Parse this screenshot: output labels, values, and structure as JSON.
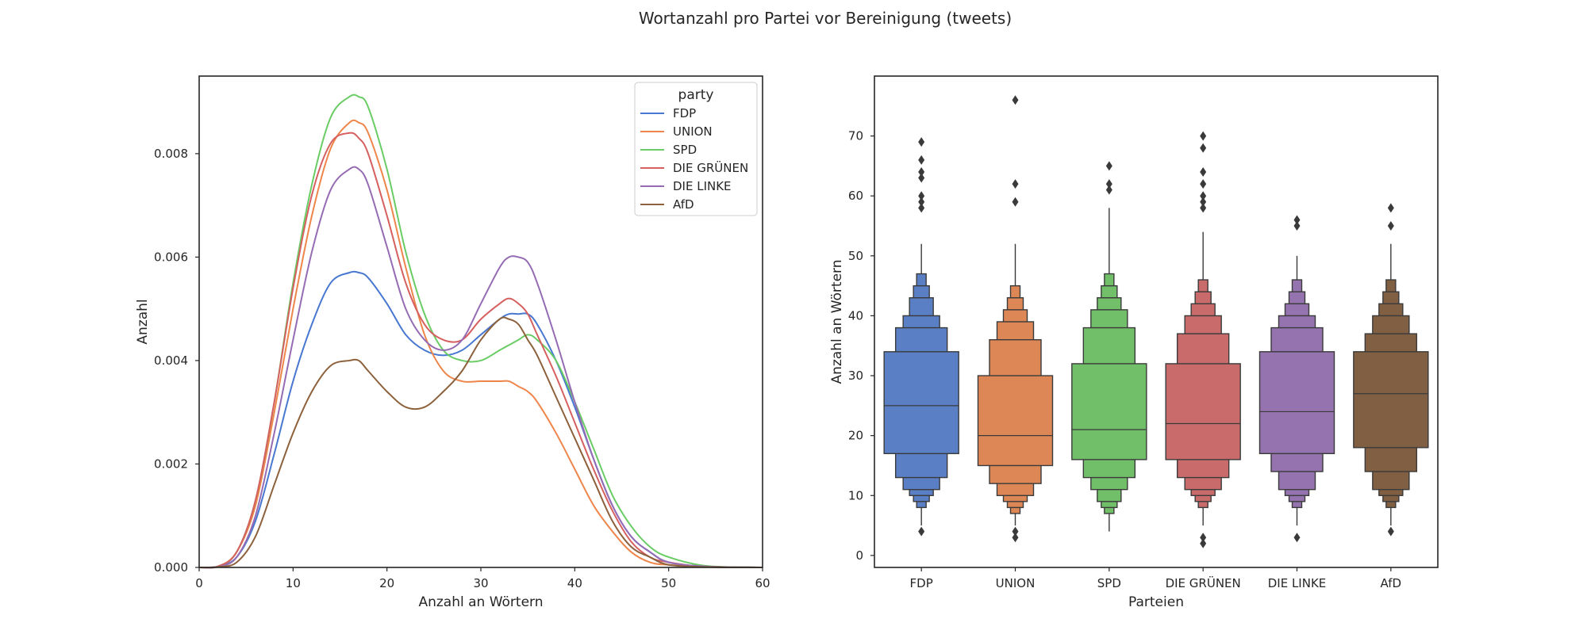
{
  "figure": {
    "suptitle": "Wortanzahl pro Partei vor Bereinigung (tweets)"
  },
  "chart_data": [
    {
      "type": "line",
      "subtype": "kde",
      "xlabel": "Anzahl an Wörtern",
      "ylabel": "Anzahl",
      "xlim": [
        0,
        60
      ],
      "ylim": [
        0,
        0.0095
      ],
      "xticks": [
        "0",
        "10",
        "20",
        "30",
        "40",
        "50",
        "60"
      ],
      "yticks": [
        "0.000",
        "0.002",
        "0.004",
        "0.006",
        "0.008"
      ],
      "grid": false,
      "legend": {
        "title": "party",
        "placement": "top-right",
        "entries": [
          "FDP",
          "UNION",
          "SPD",
          "DIE GRÜNEN",
          "DIE LINKE",
          "AfD"
        ]
      },
      "x": [
        0,
        2,
        4,
        6,
        8,
        10,
        12,
        14,
        16,
        17,
        18,
        20,
        22,
        24,
        26,
        28,
        30,
        32,
        33,
        34,
        35,
        36,
        38,
        40,
        42,
        44,
        46,
        48,
        50,
        54,
        60
      ],
      "series": [
        {
          "name": "FDP",
          "color": "#4878d0",
          "values": [
            0,
            2e-05,
            0.0002,
            0.0009,
            0.0022,
            0.0036,
            0.0047,
            0.0055,
            0.0057,
            0.0057,
            0.0056,
            0.0051,
            0.0045,
            0.0042,
            0.0041,
            0.0042,
            0.0045,
            0.0048,
            0.0049,
            0.0049,
            0.0049,
            0.0047,
            0.004,
            0.0031,
            0.0021,
            0.0012,
            0.0006,
            0.0003,
            0.0001,
            2e-05,
            0
          ]
        },
        {
          "name": "UNION",
          "color": "#ee854a",
          "values": [
            0,
            2e-05,
            0.0003,
            0.0012,
            0.003,
            0.005,
            0.0068,
            0.0081,
            0.0086,
            0.0086,
            0.0084,
            0.0073,
            0.0058,
            0.0045,
            0.0038,
            0.0036,
            0.0036,
            0.0036,
            0.0036,
            0.0035,
            0.0034,
            0.0032,
            0.0026,
            0.0019,
            0.0012,
            0.0007,
            0.0003,
            0.0001,
            5e-05,
            1e-05,
            0
          ]
        },
        {
          "name": "SPD",
          "color": "#6acc64",
          "values": [
            0,
            2e-05,
            0.0003,
            0.0013,
            0.0032,
            0.0055,
            0.0074,
            0.0087,
            0.0091,
            0.0091,
            0.0089,
            0.0077,
            0.0061,
            0.0049,
            0.0042,
            0.004,
            0.004,
            0.0042,
            0.0043,
            0.0044,
            0.0045,
            0.0044,
            0.004,
            0.0032,
            0.0023,
            0.0014,
            0.0008,
            0.0004,
            0.0002,
            3e-05,
            0
          ]
        },
        {
          "name": "DIE GRÜNEN",
          "color": "#d65f5f",
          "values": [
            0,
            2e-05,
            0.0003,
            0.0013,
            0.0032,
            0.0054,
            0.0072,
            0.0082,
            0.0084,
            0.0083,
            0.008,
            0.0068,
            0.0055,
            0.0047,
            0.0044,
            0.0044,
            0.0048,
            0.0051,
            0.0052,
            0.0051,
            0.0049,
            0.0045,
            0.0037,
            0.0028,
            0.0019,
            0.0011,
            0.0005,
            0.0002,
            0.0001,
            1e-05,
            0
          ]
        },
        {
          "name": "DIE LINKE",
          "color": "#956cb4",
          "values": [
            0,
            1e-05,
            0.0002,
            0.001,
            0.0026,
            0.0044,
            0.0061,
            0.0073,
            0.0077,
            0.0077,
            0.0074,
            0.0062,
            0.005,
            0.0044,
            0.0042,
            0.0044,
            0.0051,
            0.0058,
            0.006,
            0.006,
            0.0059,
            0.0055,
            0.0044,
            0.0032,
            0.0021,
            0.0012,
            0.0006,
            0.0003,
            0.0001,
            2e-05,
            0
          ]
        },
        {
          "name": "AfD",
          "color": "#8c613c",
          "values": [
            0,
            1e-05,
            0.0001,
            0.0006,
            0.0016,
            0.0026,
            0.0034,
            0.0039,
            0.004,
            0.004,
            0.0038,
            0.0034,
            0.0031,
            0.0031,
            0.0034,
            0.0038,
            0.0044,
            0.0048,
            0.0048,
            0.0047,
            0.0044,
            0.0041,
            0.0033,
            0.0025,
            0.0017,
            0.0009,
            0.0004,
            0.0002,
            5e-05,
            1e-05,
            0
          ]
        }
      ]
    },
    {
      "type": "boxen",
      "xlabel": "Parteien",
      "ylabel": "Anzahl an Wörtern",
      "ylim": [
        -2,
        80
      ],
      "yticks": [
        "0",
        "10",
        "20",
        "30",
        "40",
        "50",
        "60",
        "70"
      ],
      "grid": false,
      "categories": [
        "FDP",
        "UNION",
        "SPD",
        "DIE GRÜNEN",
        "DIE LINKE",
        "AfD"
      ],
      "series": [
        {
          "name": "FDP",
          "color": "#5a7fc4",
          "median": 25,
          "boxes": [
            [
              17,
              34
            ],
            [
              13,
              38
            ],
            [
              11,
              40
            ],
            [
              10,
              43
            ],
            [
              9,
              45
            ],
            [
              8,
              47
            ]
          ],
          "whisker": [
            5,
            52
          ],
          "outliers": [
            4,
            58,
            59,
            60,
            63,
            64,
            66,
            69
          ]
        },
        {
          "name": "UNION",
          "color": "#dd8757",
          "median": 20,
          "boxes": [
            [
              15,
              30
            ],
            [
              12,
              36
            ],
            [
              10,
              39
            ],
            [
              9,
              41
            ],
            [
              8,
              43
            ],
            [
              7,
              45
            ]
          ],
          "whisker": [
            5,
            52
          ],
          "outliers": [
            3,
            4,
            59,
            62,
            76
          ]
        },
        {
          "name": "SPD",
          "color": "#72bf6a",
          "median": 21,
          "boxes": [
            [
              16,
              32
            ],
            [
              13,
              38
            ],
            [
              11,
              41
            ],
            [
              9,
              43
            ],
            [
              8,
              45
            ],
            [
              7,
              47
            ]
          ],
          "whisker": [
            4,
            58
          ],
          "outliers": [
            61,
            62,
            65
          ]
        },
        {
          "name": "DIE GRÜNEN",
          "color": "#c96b6b",
          "median": 22,
          "boxes": [
            [
              16,
              32
            ],
            [
              13,
              37
            ],
            [
              11,
              40
            ],
            [
              10,
              42
            ],
            [
              9,
              44
            ],
            [
              8,
              46
            ]
          ],
          "whisker": [
            5,
            54
          ],
          "outliers": [
            2,
            3,
            58,
            59,
            60,
            62,
            64,
            68,
            70
          ]
        },
        {
          "name": "DIE LINKE",
          "color": "#9473ae",
          "median": 24,
          "boxes": [
            [
              17,
              34
            ],
            [
              14,
              38
            ],
            [
              11,
              40
            ],
            [
              10,
              42
            ],
            [
              9,
              44
            ],
            [
              8,
              46
            ]
          ],
          "whisker": [
            5,
            50
          ],
          "outliers": [
            3,
            55,
            56
          ]
        },
        {
          "name": "AfD",
          "color": "#815f43",
          "median": 27,
          "boxes": [
            [
              18,
              34
            ],
            [
              14,
              37
            ],
            [
              11,
              40
            ],
            [
              10,
              42
            ],
            [
              9,
              44
            ],
            [
              8,
              46
            ]
          ],
          "whisker": [
            5,
            52
          ],
          "outliers": [
            4,
            55,
            58
          ]
        }
      ]
    }
  ]
}
